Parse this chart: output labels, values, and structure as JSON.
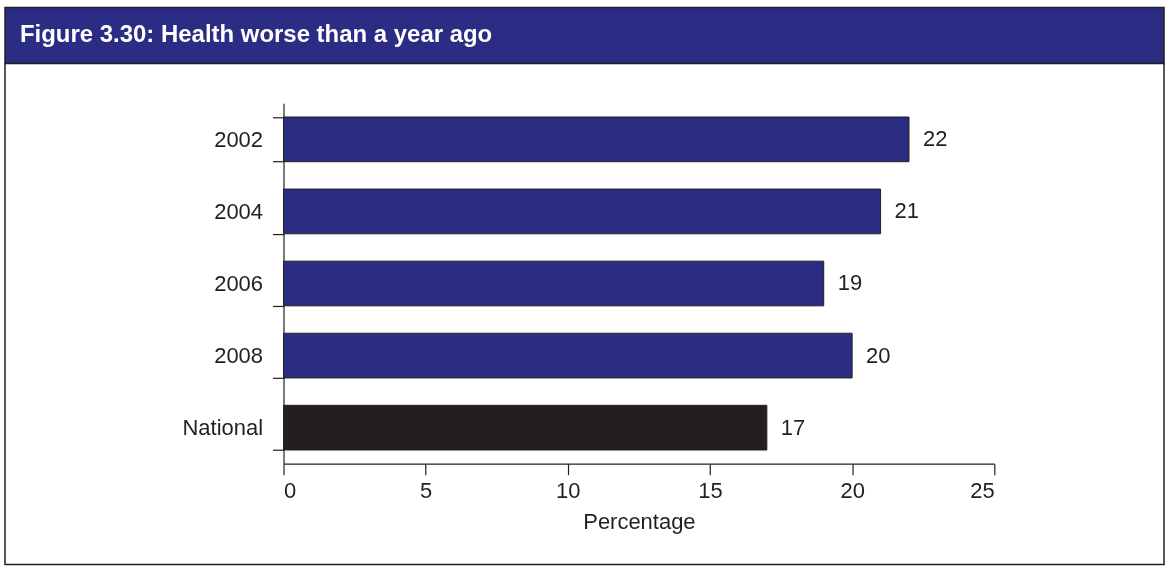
{
  "chart_data": {
    "type": "bar",
    "orientation": "horizontal",
    "title": "Figure 3.30: Health worse than a year ago",
    "xlabel": "Percentage",
    "categories": [
      "2002",
      "2004",
      "2006",
      "2008",
      "National"
    ],
    "values": [
      22,
      21,
      19,
      20,
      17
    ],
    "colors": [
      "#2a2d82",
      "#2a2d82",
      "#2a2d82",
      "#2a2d82",
      "#231f20"
    ],
    "xlim": [
      0,
      25
    ],
    "xticks": [
      0,
      5,
      10,
      15,
      20,
      25
    ],
    "data_labels": true
  }
}
